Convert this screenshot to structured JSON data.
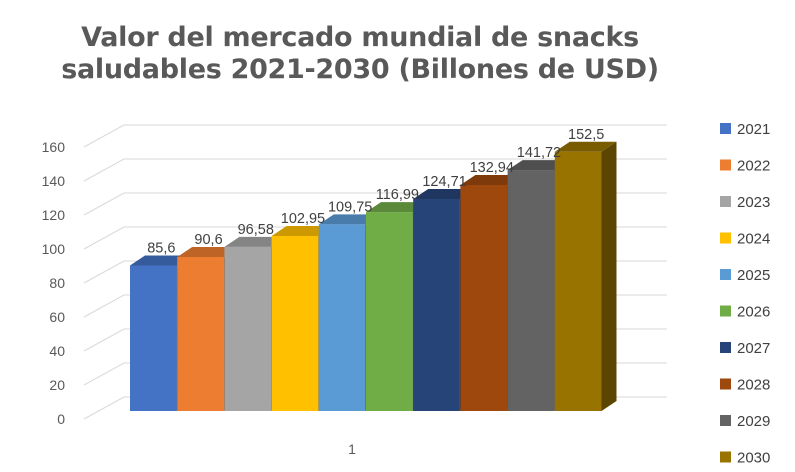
{
  "chart_data": {
    "type": "bar",
    "title_lines": [
      "Valor del mercado mundial de snacks",
      "saludables 2021-2030 (Billones de USD)"
    ],
    "categories": [
      "1"
    ],
    "y_ticks": [
      "0",
      "20",
      "40",
      "60",
      "80",
      "100",
      "120",
      "140",
      "160"
    ],
    "ylim": [
      0,
      160
    ],
    "grid": true,
    "legend_position": "right",
    "series": [
      {
        "name": "2021",
        "value": 85.6,
        "label": "85,6",
        "color": "#4472C4"
      },
      {
        "name": "2022",
        "value": 90.6,
        "label": "90,6",
        "color": "#ED7D31"
      },
      {
        "name": "2023",
        "value": 96.58,
        "label": "96,58",
        "color": "#A5A5A5"
      },
      {
        "name": "2024",
        "value": 102.95,
        "label": "102,95",
        "color": "#FFC000"
      },
      {
        "name": "2025",
        "value": 109.75,
        "label": "109,75",
        "color": "#5B9BD5"
      },
      {
        "name": "2026",
        "value": 116.99,
        "label": "116,99",
        "color": "#70AD47"
      },
      {
        "name": "2027",
        "value": 124.71,
        "label": "124,71",
        "color": "#264478"
      },
      {
        "name": "2028",
        "value": 132.94,
        "label": "132,94",
        "color": "#9E480E"
      },
      {
        "name": "2029",
        "value": 141.72,
        "label": "141,72",
        "color": "#636363"
      },
      {
        "name": "2030",
        "value": 152.5,
        "label": "152,5",
        "color": "#997300"
      }
    ]
  }
}
